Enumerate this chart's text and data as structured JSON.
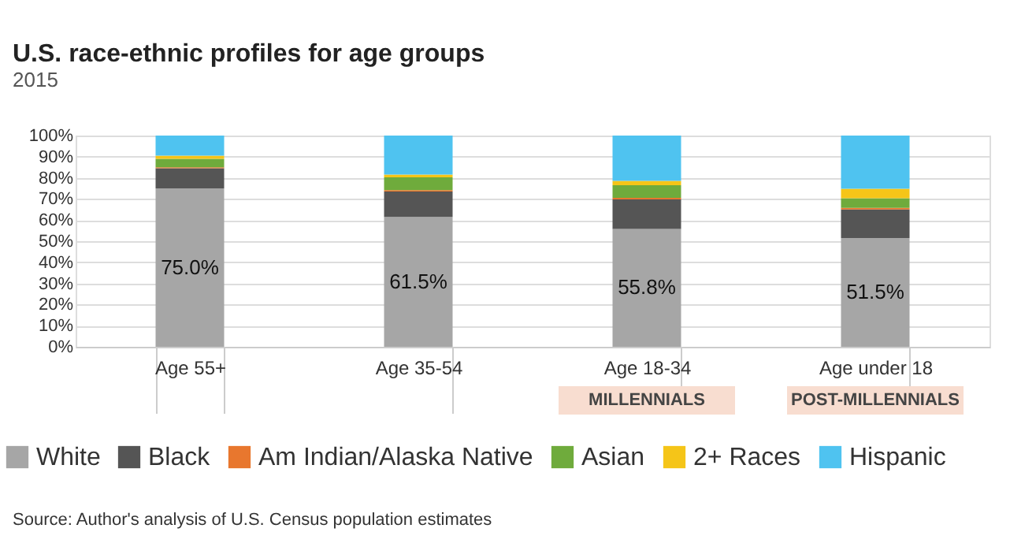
{
  "chart_data": {
    "type": "bar",
    "stacked": true,
    "title": "U.S. race-ethnic profiles for age groups",
    "subtitle": "2015",
    "categories": [
      "Age 55+",
      "Age 35-54",
      "Age 18-34",
      "Age under 18"
    ],
    "series": [
      {
        "name": "White",
        "color": "#a6a6a6",
        "values": [
          75.0,
          61.5,
          55.8,
          51.5
        ],
        "value_labels": [
          "75.0%",
          "61.5%",
          "55.8%",
          "51.5%"
        ]
      },
      {
        "name": "Black",
        "color": "#555555",
        "values": [
          9.5,
          12,
          14,
          13.5
        ]
      },
      {
        "name": "Am Indian/Alaska Native",
        "color": "#e8772e",
        "values": [
          0.5,
          0.7,
          0.7,
          0.8
        ]
      },
      {
        "name": "Asian",
        "color": "#6fab3c",
        "values": [
          4,
          6,
          6,
          4.5
        ]
      },
      {
        "name": "2+ Races",
        "color": "#f5c518",
        "values": [
          1.5,
          1.3,
          2,
          4.5
        ]
      },
      {
        "name": "Hispanic",
        "color": "#4fc3f0",
        "values": [
          9.5,
          18.5,
          21.5,
          25.2
        ]
      }
    ],
    "ylim": [
      0,
      100
    ],
    "yticks": [
      {
        "value": 0,
        "label": "0%"
      },
      {
        "value": 10,
        "label": "10%"
      },
      {
        "value": 20,
        "label": "20%"
      },
      {
        "value": 30,
        "label": "30%"
      },
      {
        "value": 40,
        "label": "40%"
      },
      {
        "value": 50,
        "label": "50%"
      },
      {
        "value": 60,
        "label": "60%"
      },
      {
        "value": 70,
        "label": "70%"
      },
      {
        "value": 80,
        "label": "80%"
      },
      {
        "value": 90,
        "label": "90%"
      },
      {
        "value": 100,
        "label": "100%"
      }
    ],
    "grid": "y",
    "legend": "bottom",
    "annotations": [
      "MILLENNIALS",
      "POST-MILLENNIALS",
      "Source: Author's analysis of U.S. Census population estimates"
    ]
  }
}
